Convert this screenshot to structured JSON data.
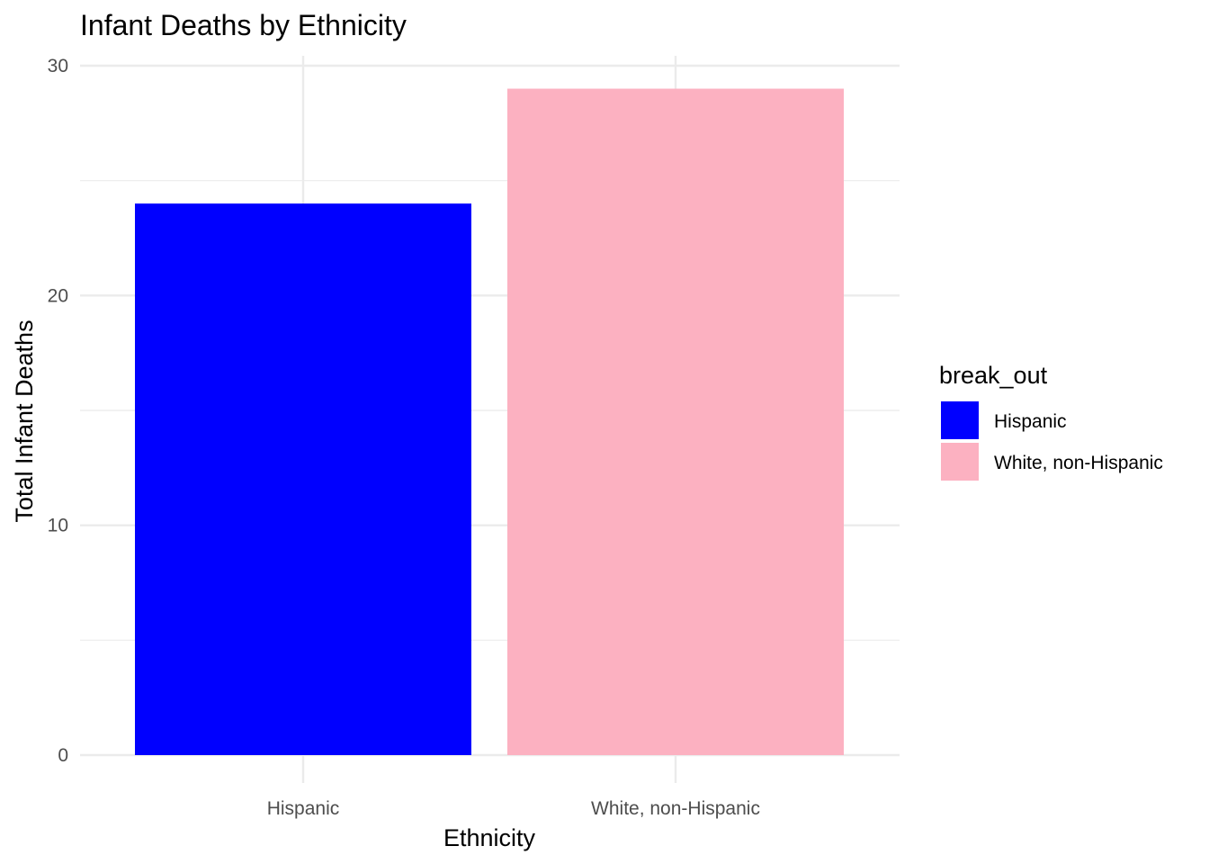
{
  "chart_data": {
    "type": "bar",
    "title": "Infant Deaths by Ethnicity",
    "xlabel": "Ethnicity",
    "ylabel": "Total Infant Deaths",
    "categories": [
      "Hispanic",
      "White, non-Hispanic"
    ],
    "values": [
      24,
      29
    ],
    "ylim": [
      0,
      30
    ],
    "y_ticks": [
      "0",
      "10",
      "20",
      "30"
    ],
    "grid": true,
    "colors": [
      "#0000ff",
      "#fcb1c1"
    ],
    "legend": {
      "title": "break_out",
      "position": "right",
      "entries": [
        "Hispanic",
        "White, non-Hispanic"
      ]
    }
  }
}
